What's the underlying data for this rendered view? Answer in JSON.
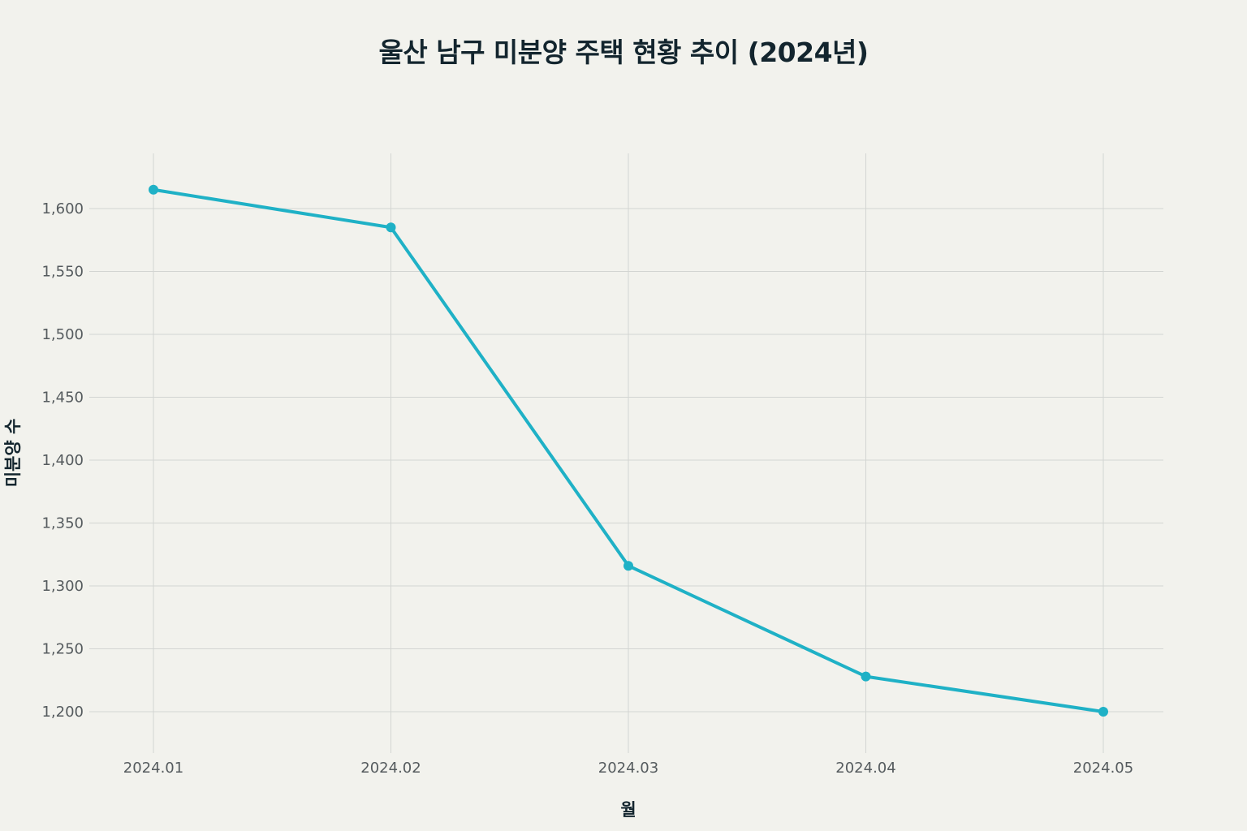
{
  "chart_data": {
    "type": "line",
    "title": "울산 남구 미분양 주택 현황 추이 (2024년)",
    "xlabel": "월",
    "ylabel": "미분양 수",
    "categories": [
      "2024.01",
      "2024.02",
      "2024.03",
      "2024.04",
      "2024.05"
    ],
    "series": [
      {
        "values": [
          1615,
          1585,
          1316,
          1228,
          1200
        ]
      }
    ],
    "yticks": [
      1200,
      1250,
      1300,
      1350,
      1400,
      1450,
      1500,
      1550,
      1600
    ],
    "ytick_labels": [
      "1,200",
      "1,250",
      "1,300",
      "1,350",
      "1,400",
      "1,450",
      "1,500",
      "1,550",
      "1,600"
    ],
    "ylim": [
      1170,
      1645
    ],
    "grid": true,
    "line_color": "#1fb1c6",
    "legend": "none"
  }
}
